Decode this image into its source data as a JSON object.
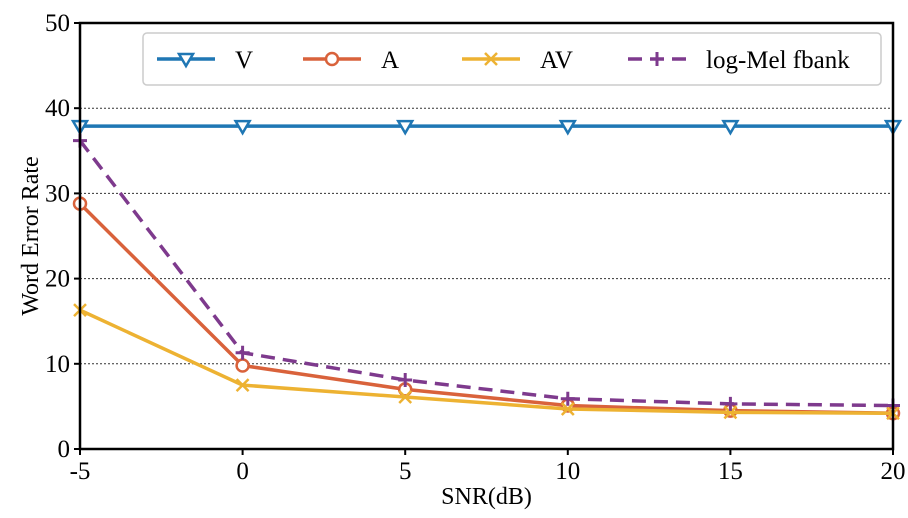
{
  "chart_data": {
    "type": "line",
    "xlabel": "SNR(dB)",
    "ylabel": "Word Error Rate",
    "x": [
      -5,
      0,
      5,
      10,
      15,
      20
    ],
    "x_tick_labels": [
      "-5",
      "0",
      "5",
      "10",
      "15",
      "20"
    ],
    "y_ticks": [
      0,
      10,
      20,
      30,
      40,
      50
    ],
    "xlim": [
      -5,
      20
    ],
    "ylim": [
      0,
      50
    ],
    "grid": "horizontal dotted",
    "legend_position": "top",
    "series": [
      {
        "name": "V",
        "marker": "triangle-down",
        "line_style": "solid",
        "color": "#1f77b4",
        "values": [
          37.9,
          37.9,
          37.9,
          37.9,
          37.9,
          37.9
        ]
      },
      {
        "name": "A",
        "marker": "circle",
        "line_style": "solid",
        "color": "#d9623b",
        "values": [
          28.8,
          9.8,
          7.0,
          5.1,
          4.5,
          4.2
        ]
      },
      {
        "name": "AV",
        "marker": "x",
        "line_style": "solid",
        "color": "#edb232",
        "values": [
          16.3,
          7.5,
          6.1,
          4.7,
          4.3,
          4.2
        ]
      },
      {
        "name": "log-Mel fbank",
        "marker": "plus",
        "line_style": "dashed",
        "color": "#7e3a8d",
        "values": [
          36.2,
          11.3,
          8.1,
          5.9,
          5.3,
          5.1
        ]
      }
    ]
  }
}
